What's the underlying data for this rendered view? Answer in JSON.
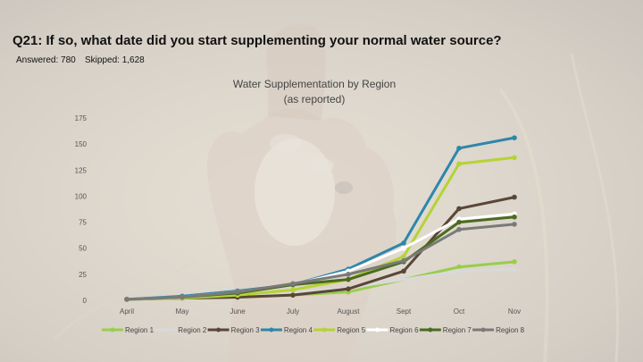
{
  "header": {
    "question": "Q21: If so, what date did you start supplementing your normal water source?",
    "answered": "Answered: 780",
    "skipped": "Skipped: 1,628"
  },
  "chart_data": {
    "type": "line",
    "title_line1": "Water Supplementation by Region",
    "title_line2": "(as reported)",
    "categories": [
      "April",
      "May",
      "June",
      "July",
      "August",
      "Sept",
      "Oct",
      "Nov"
    ],
    "ylim": [
      0,
      175
    ],
    "yticks": [
      0,
      25,
      50,
      75,
      100,
      125,
      150,
      175
    ],
    "grid": false,
    "legend_position": "bottom",
    "series": [
      {
        "name": "Region 1",
        "color": "#9acd4c",
        "values": [
          1,
          2,
          3,
          5,
          8,
          20,
          32,
          37
        ]
      },
      {
        "name": "Region 2",
        "color": "#d9d9d9",
        "values": [
          1,
          2,
          4,
          8,
          12,
          20,
          28,
          30
        ]
      },
      {
        "name": "Region 3",
        "color": "#5a4638",
        "values": [
          1,
          2,
          3,
          5,
          11,
          28,
          88,
          99
        ]
      },
      {
        "name": "Region 4",
        "color": "#2e86ab",
        "values": [
          1,
          4,
          9,
          15,
          30,
          55,
          146,
          156
        ]
      },
      {
        "name": "Region 5",
        "color": "#b5d334",
        "values": [
          1,
          2,
          5,
          10,
          20,
          42,
          131,
          137
        ]
      },
      {
        "name": "Region 6",
        "color": "#ffffff",
        "values": [
          1,
          3,
          8,
          15,
          28,
          50,
          78,
          83
        ]
      },
      {
        "name": "Region 7",
        "color": "#4a6b20",
        "values": [
          1,
          3,
          7,
          15,
          20,
          37,
          75,
          80
        ]
      },
      {
        "name": "Region 8",
        "color": "#7a7a7a",
        "values": [
          1,
          3,
          8,
          16,
          25,
          38,
          68,
          73
        ]
      }
    ]
  }
}
